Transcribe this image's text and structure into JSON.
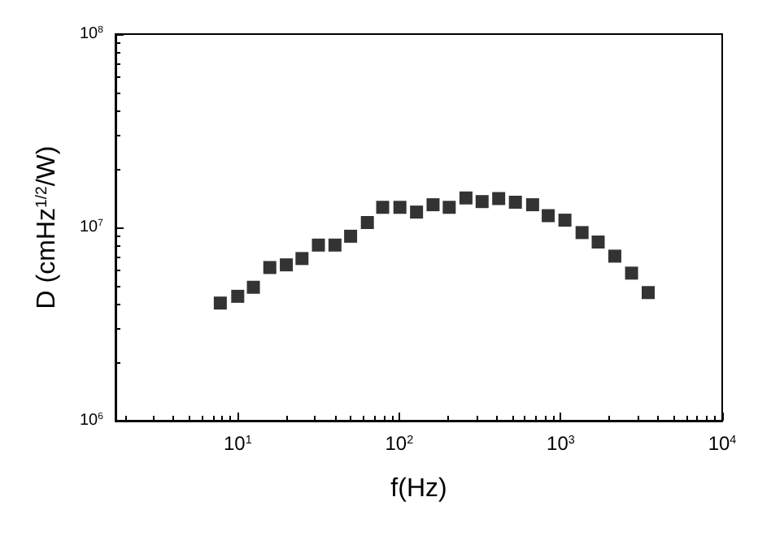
{
  "chart_data": {
    "type": "scatter",
    "xlabel": "f(Hz)",
    "ylabel": "D (cmHz$^{1/2}$/W)",
    "log": "xy",
    "grid": false,
    "marker": "square",
    "xlim": [
      1.75,
      10000
    ],
    "ylim": [
      1000000,
      100000000
    ],
    "xticks": [
      {
        "value": 10,
        "label": "10$^{1}$"
      },
      {
        "value": 100,
        "label": "10$^{2}$"
      },
      {
        "value": 1000,
        "label": "10$^{3}$"
      },
      {
        "value": 10000,
        "label": "10$^{4}$"
      }
    ],
    "yticks": [
      {
        "value": 1000000,
        "label": "10$^{6}$"
      },
      {
        "value": 10000000,
        "label": "10$^{7}$"
      },
      {
        "value": 100000000,
        "label": "10$^{8}$"
      }
    ],
    "series": [
      {
        "color": "#000000",
        "x": [
          7.8,
          10,
          12.5,
          15.8,
          20,
          25,
          31.6,
          40,
          50,
          63.5,
          79,
          101,
          128,
          162,
          204,
          259,
          326,
          413,
          524,
          670,
          837,
          1062,
          1356,
          1706,
          2163,
          2746,
          3480
        ],
        "values": [
          4060000,
          4400000,
          4900000,
          6200000,
          6400000,
          6900000,
          8100000,
          8100000,
          9000000,
          10600000,
          12700000,
          12700000,
          12000000,
          13100000,
          12700000,
          14200000,
          13600000,
          14100000,
          13500000,
          13100000,
          11500000,
          10900000,
          9400000,
          8400000,
          7100000,
          5800000,
          4600000
        ]
      }
    ]
  }
}
